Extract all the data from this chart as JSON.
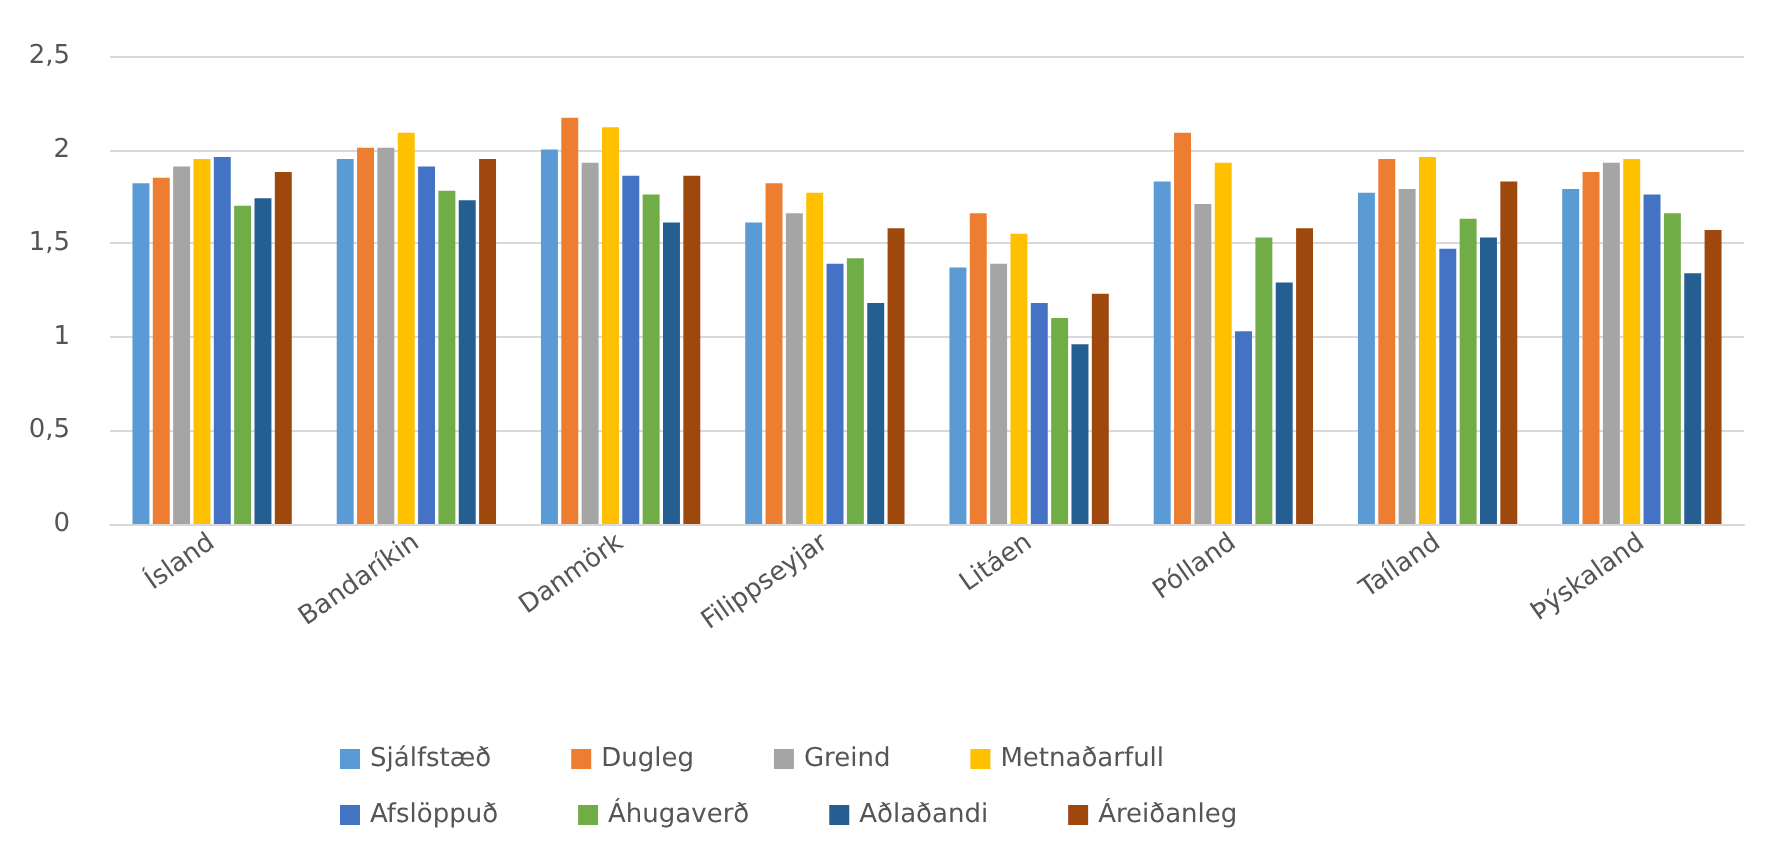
{
  "chart_data": {
    "type": "bar",
    "categories": [
      "Ísland",
      "Bandaríkin",
      "Danmörk",
      "Filippseyjar",
      "Litáen",
      "Pólland",
      "Taíland",
      "Þýskaland"
    ],
    "series": [
      {
        "name": "Sjálfstæð",
        "color": "#5b9bd5",
        "values": [
          1.82,
          1.95,
          2.0,
          1.61,
          1.37,
          1.83,
          1.77,
          1.79
        ]
      },
      {
        "name": "Dugleg",
        "color": "#ed7d31",
        "values": [
          1.85,
          2.01,
          2.17,
          1.82,
          1.66,
          2.09,
          1.95,
          1.88
        ]
      },
      {
        "name": "Greind",
        "color": "#a5a5a5",
        "values": [
          1.91,
          2.01,
          1.93,
          1.66,
          1.39,
          1.71,
          1.79,
          1.93
        ]
      },
      {
        "name": "Metnaðarfull",
        "color": "#ffc000",
        "values": [
          1.95,
          2.09,
          2.12,
          1.77,
          1.55,
          1.93,
          1.96,
          1.95
        ]
      },
      {
        "name": "Afslöppuð",
        "color": "#4472c4",
        "values": [
          1.96,
          1.91,
          1.86,
          1.39,
          1.18,
          1.03,
          1.47,
          1.76
        ]
      },
      {
        "name": "Áhugaverð",
        "color": "#70ad47",
        "values": [
          1.7,
          1.78,
          1.76,
          1.42,
          1.1,
          1.53,
          1.63,
          1.66
        ]
      },
      {
        "name": "Aðlaðandi",
        "color": "#255e91",
        "values": [
          1.74,
          1.73,
          1.61,
          1.18,
          0.96,
          1.29,
          1.53,
          1.34
        ]
      },
      {
        "name": "Áreiðanleg",
        "color": "#9e480e",
        "values": [
          1.88,
          1.95,
          1.86,
          1.58,
          1.23,
          1.58,
          1.83,
          1.57
        ]
      }
    ],
    "ylim": [
      0,
      2.5
    ],
    "yticks": [
      0,
      {
        "value": 0.5,
        "label": "0,5"
      },
      1,
      {
        "value": 1.5,
        "label": "1,5"
      },
      2,
      {
        "value": 2.5,
        "label": "2,5"
      }
    ],
    "grid": "y",
    "legend": "bottom"
  }
}
